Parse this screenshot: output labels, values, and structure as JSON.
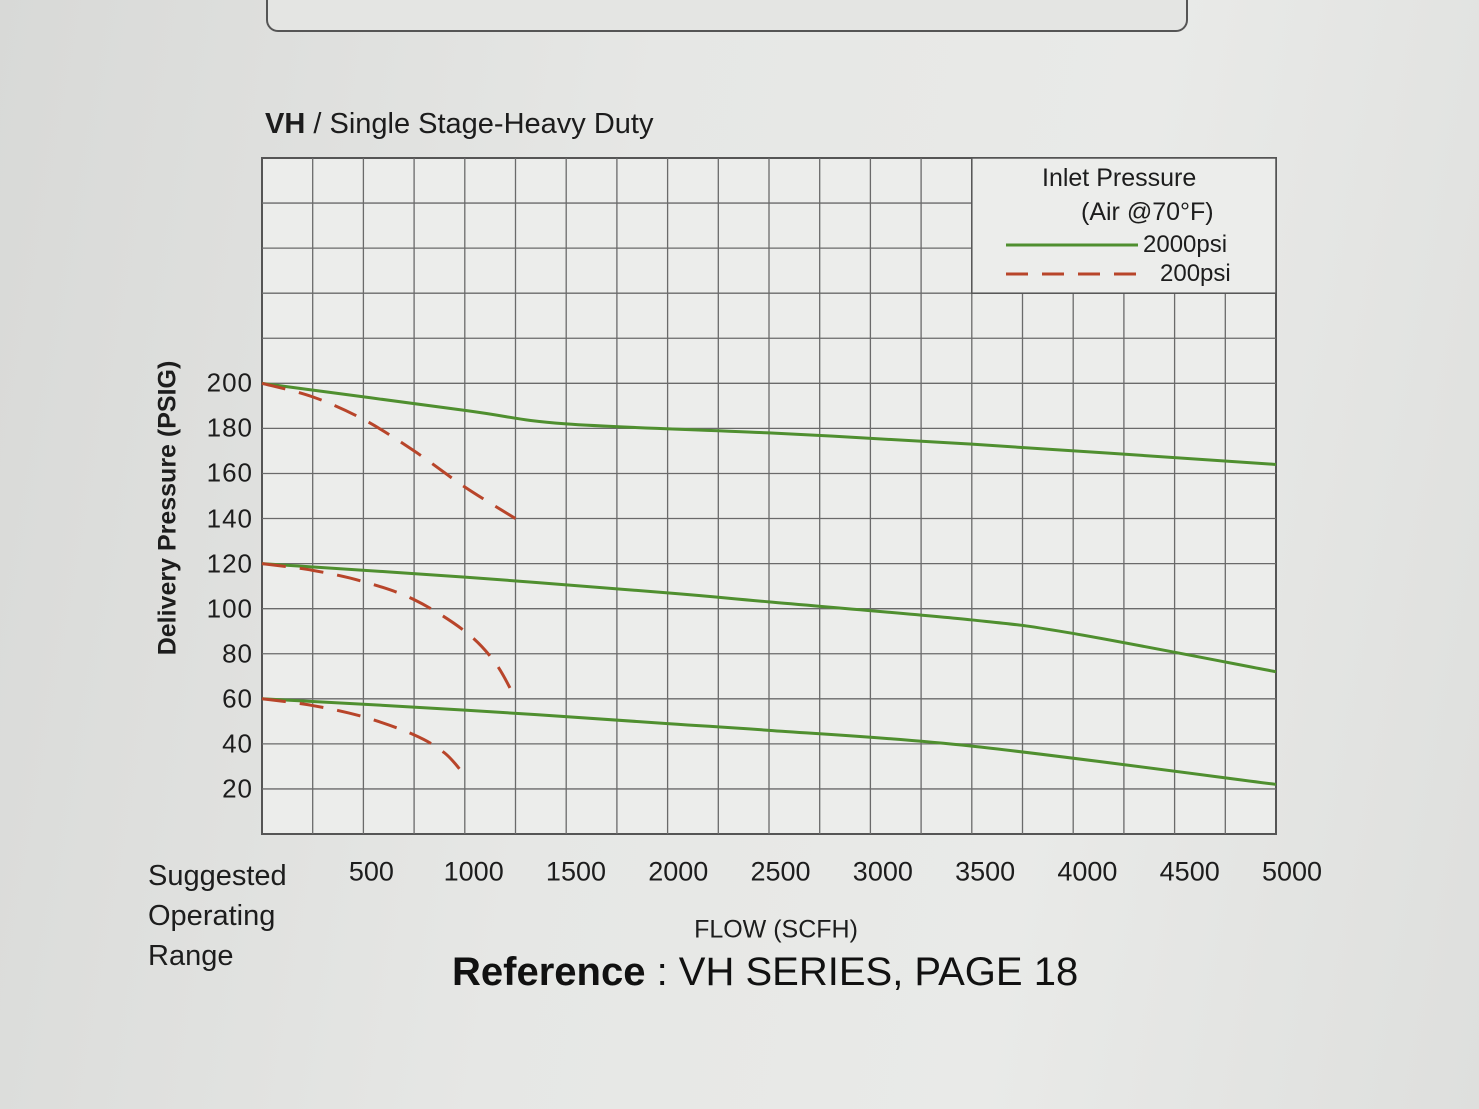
{
  "chart_data": {
    "type": "line",
    "model": "VH",
    "title": "/ Single Stage-Heavy Duty",
    "xlabel": "FLOW (SCFH)",
    "ylabel": "Delivery Pressure (PSIG)",
    "x_first_tick_label": [
      "Suggested",
      "Operating",
      "Range"
    ],
    "x_ticks": [
      500,
      1000,
      1500,
      2000,
      2500,
      3000,
      3500,
      4000,
      4500,
      5000
    ],
    "y_ticks": [
      20,
      40,
      60,
      80,
      100,
      120,
      140,
      160,
      180,
      200
    ],
    "xlim": [
      0,
      5000
    ],
    "ylim": [
      0,
      300
    ],
    "grid": true,
    "legend": {
      "title": "Inlet Pressure",
      "subtitle": "(Air @70°F)",
      "placement": "top-right",
      "entries": [
        {
          "name": "2000psi",
          "style": "solid",
          "color": "#4f8f2f"
        },
        {
          "name": "200psi",
          "style": "dashed",
          "color": "#b8452a"
        }
      ]
    },
    "series": [
      {
        "group": "2000psi",
        "style": "solid",
        "color": "#4f8f2f",
        "points": [
          [
            0,
            200
          ],
          [
            1000,
            188
          ],
          [
            1500,
            182
          ],
          [
            2500,
            178
          ],
          [
            3500,
            173
          ],
          [
            5000,
            164
          ]
        ]
      },
      {
        "group": "2000psi",
        "style": "solid",
        "color": "#4f8f2f",
        "points": [
          [
            0,
            120
          ],
          [
            1000,
            114
          ],
          [
            2000,
            107
          ],
          [
            2500,
            103
          ],
          [
            3500,
            95
          ],
          [
            4000,
            89
          ],
          [
            5000,
            72
          ]
        ]
      },
      {
        "group": "2000psi",
        "style": "solid",
        "color": "#4f8f2f",
        "points": [
          [
            0,
            60
          ],
          [
            1000,
            55
          ],
          [
            2000,
            49
          ],
          [
            2500,
            46
          ],
          [
            3500,
            39
          ],
          [
            5000,
            22
          ]
        ]
      },
      {
        "group": "200psi",
        "style": "dashed",
        "color": "#b8452a",
        "points": [
          [
            0,
            200
          ],
          [
            250,
            194
          ],
          [
            500,
            184
          ],
          [
            750,
            170
          ],
          [
            1000,
            154
          ],
          [
            1250,
            140
          ]
        ]
      },
      {
        "group": "200psi",
        "style": "dashed",
        "color": "#b8452a",
        "points": [
          [
            0,
            120
          ],
          [
            250,
            117
          ],
          [
            500,
            112
          ],
          [
            750,
            104
          ],
          [
            1000,
            90
          ],
          [
            1150,
            76
          ],
          [
            1250,
            60
          ]
        ]
      },
      {
        "group": "200psi",
        "style": "dashed",
        "color": "#b8452a",
        "points": [
          [
            0,
            60
          ],
          [
            250,
            57
          ],
          [
            500,
            52
          ],
          [
            750,
            44
          ],
          [
            900,
            36
          ],
          [
            1000,
            26
          ]
        ]
      }
    ]
  },
  "footer": {
    "reference_key": "Reference",
    "reference_value": ": VH SERIES, PAGE 18"
  }
}
